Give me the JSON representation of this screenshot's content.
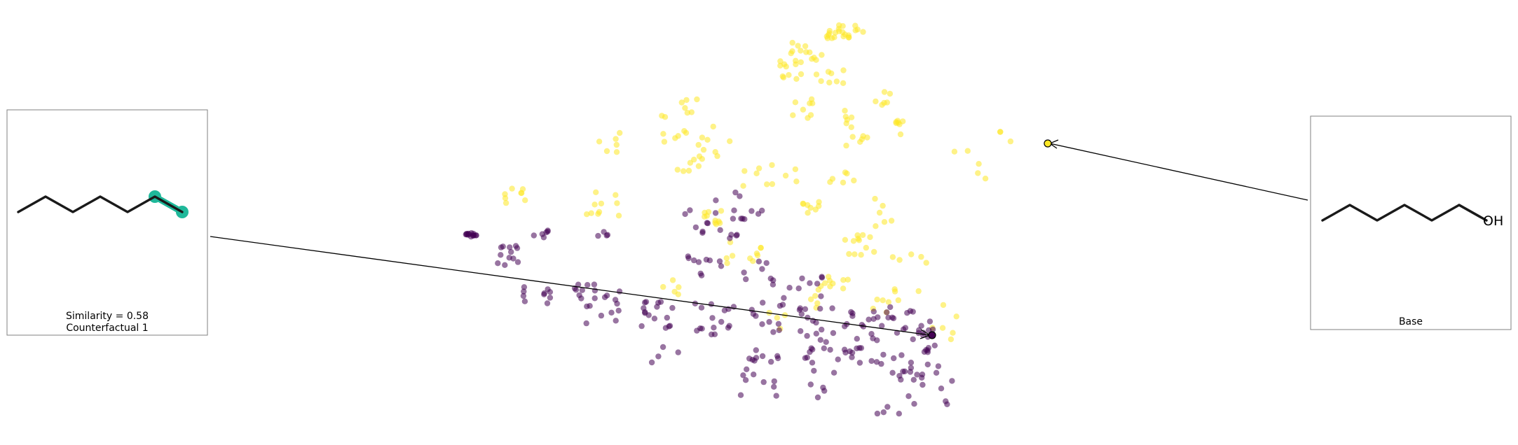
{
  "chart_data": {
    "type": "scatter",
    "title": "",
    "xlabel": "",
    "ylabel": "",
    "axes_visible": false,
    "colors": {
      "class_0": "#440154",
      "class_1": "#fde725",
      "highlight": "#1fb89a",
      "frame": "#808080",
      "bond": "#1a1a1a"
    },
    "seed_yellow": 7,
    "seed_purple": 13,
    "clusters_yellow": [
      [
        1205,
        45,
        28,
        10,
        22
      ],
      [
        1150,
        75,
        30,
        14,
        14
      ],
      [
        1125,
        100,
        20,
        14,
        10
      ],
      [
        1185,
        110,
        25,
        16,
        8
      ],
      [
        1260,
        140,
        12,
        10,
        6
      ],
      [
        1140,
        155,
        20,
        14,
        8
      ],
      [
        1215,
        170,
        10,
        12,
        6
      ],
      [
        1280,
        185,
        10,
        14,
        7
      ],
      [
        1225,
        200,
        18,
        14,
        6
      ],
      [
        1100,
        250,
        40,
        16,
        10
      ],
      [
        1020,
        205,
        25,
        25,
        10
      ],
      [
        960,
        185,
        20,
        20,
        8
      ],
      [
        870,
        205,
        15,
        15,
        6
      ],
      [
        980,
        150,
        15,
        15,
        6
      ],
      [
        860,
        295,
        30,
        25,
        10
      ],
      [
        735,
        280,
        15,
        15,
        8
      ],
      [
        980,
        245,
        25,
        20,
        6
      ],
      [
        1015,
        310,
        15,
        12,
        10
      ],
      [
        1160,
        295,
        15,
        10,
        8
      ],
      [
        1230,
        350,
        25,
        15,
        12
      ],
      [
        1185,
        405,
        25,
        10,
        10
      ],
      [
        1060,
        370,
        30,
        25,
        10
      ],
      [
        1200,
        260,
        20,
        18,
        6
      ],
      [
        1265,
        305,
        20,
        30,
        6
      ],
      [
        1305,
        390,
        35,
        30,
        8
      ],
      [
        1340,
        460,
        25,
        25,
        6
      ],
      [
        1385,
        235,
        25,
        25,
        5
      ],
      [
        1430,
        200,
        15,
        15,
        3
      ],
      [
        950,
        410,
        20,
        12,
        5
      ],
      [
        1105,
        460,
        20,
        15,
        4
      ],
      [
        1160,
        430,
        15,
        10,
        4
      ],
      [
        1270,
        440,
        25,
        20,
        6
      ]
    ],
    "clusters_purple": [
      [
        672,
        336,
        8,
        3,
        14
      ],
      [
        770,
        335,
        12,
        6,
        6
      ],
      [
        725,
        365,
        15,
        15,
        12
      ],
      [
        860,
        330,
        15,
        10,
        4
      ],
      [
        765,
        420,
        20,
        15,
        10
      ],
      [
        835,
        415,
        15,
        12,
        8
      ],
      [
        855,
        440,
        30,
        25,
        14
      ],
      [
        935,
        450,
        25,
        20,
        16
      ],
      [
        1020,
        455,
        30,
        25,
        16
      ],
      [
        1090,
        450,
        30,
        25,
        12
      ],
      [
        1160,
        465,
        30,
        25,
        16
      ],
      [
        1230,
        470,
        30,
        25,
        16
      ],
      [
        1290,
        460,
        25,
        25,
        14
      ],
      [
        1322,
        470,
        10,
        15,
        8
      ],
      [
        1325,
        500,
        10,
        10,
        6
      ],
      [
        1000,
        380,
        30,
        20,
        10
      ],
      [
        1080,
        390,
        25,
        20,
        8
      ],
      [
        1150,
        410,
        25,
        15,
        8
      ],
      [
        1080,
        520,
        35,
        20,
        12
      ],
      [
        1180,
        515,
        35,
        20,
        12
      ],
      [
        1270,
        525,
        30,
        20,
        12
      ],
      [
        1320,
        535,
        25,
        15,
        10
      ],
      [
        1280,
        580,
        35,
        15,
        6
      ],
      [
        1080,
        555,
        30,
        15,
        6
      ],
      [
        1000,
        310,
        30,
        30,
        10
      ],
      [
        1070,
        295,
        25,
        20,
        8
      ],
      [
        950,
        500,
        20,
        20,
        4
      ],
      [
        1170,
        560,
        20,
        15,
        4
      ],
      [
        1345,
        560,
        15,
        20,
        4
      ],
      [
        1220,
        510,
        15,
        15,
        8
      ],
      [
        1055,
        330,
        15,
        20,
        6
      ]
    ],
    "query_points": [
      {
        "x": 1495,
        "y": 205,
        "class": "class_1"
      },
      {
        "x": 1330,
        "y": 479,
        "class": "class_0"
      }
    ],
    "left_panel": {
      "label": "Counterfactual 1",
      "similarity_text": "Similarity = 0.58",
      "caption_line1": "Similarity = 0.58",
      "caption_line2": "Counterfactual 1",
      "molecule": "hexane chain with highlighted terminal bond"
    },
    "right_panel": {
      "caption": "Base",
      "atom_label": "OH",
      "molecule": "hexanol"
    }
  }
}
